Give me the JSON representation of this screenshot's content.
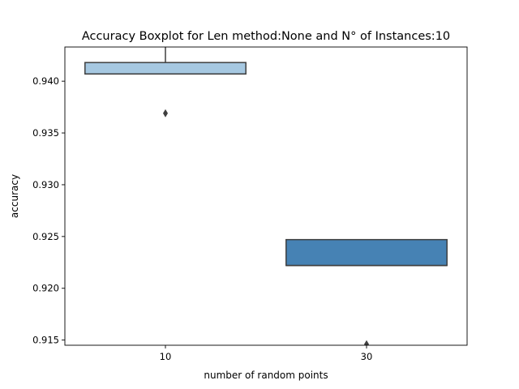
{
  "chart_data": {
    "type": "box",
    "title": "Accuracy Boxplot for Len method:None and N° of Instances:10",
    "xlabel": "number of random points",
    "ylabel": "accuracy",
    "categories": [
      "10",
      "30"
    ],
    "ylim": [
      0.9145,
      0.9433
    ],
    "yticks": [
      0.915,
      0.92,
      0.925,
      0.93,
      0.935,
      0.94
    ],
    "ytick_labels": [
      "0.915",
      "0.920",
      "0.925",
      "0.930",
      "0.935",
      "0.940"
    ],
    "grid": false,
    "boxes": [
      {
        "category": "10",
        "q1": 0.9407,
        "median": 0.9407,
        "q3": 0.9418,
        "whisker_low": 0.9407,
        "whisker_high": 0.9433,
        "outliers": [
          0.9369
        ],
        "color": "#a6c8e1"
      },
      {
        "category": "30",
        "q1": 0.9222,
        "median": 0.9222,
        "q3": 0.9247,
        "whisker_low": 0.9222,
        "whisker_high": 0.9247,
        "outliers": [
          0.9146
        ],
        "color": "#4682b4"
      }
    ]
  }
}
